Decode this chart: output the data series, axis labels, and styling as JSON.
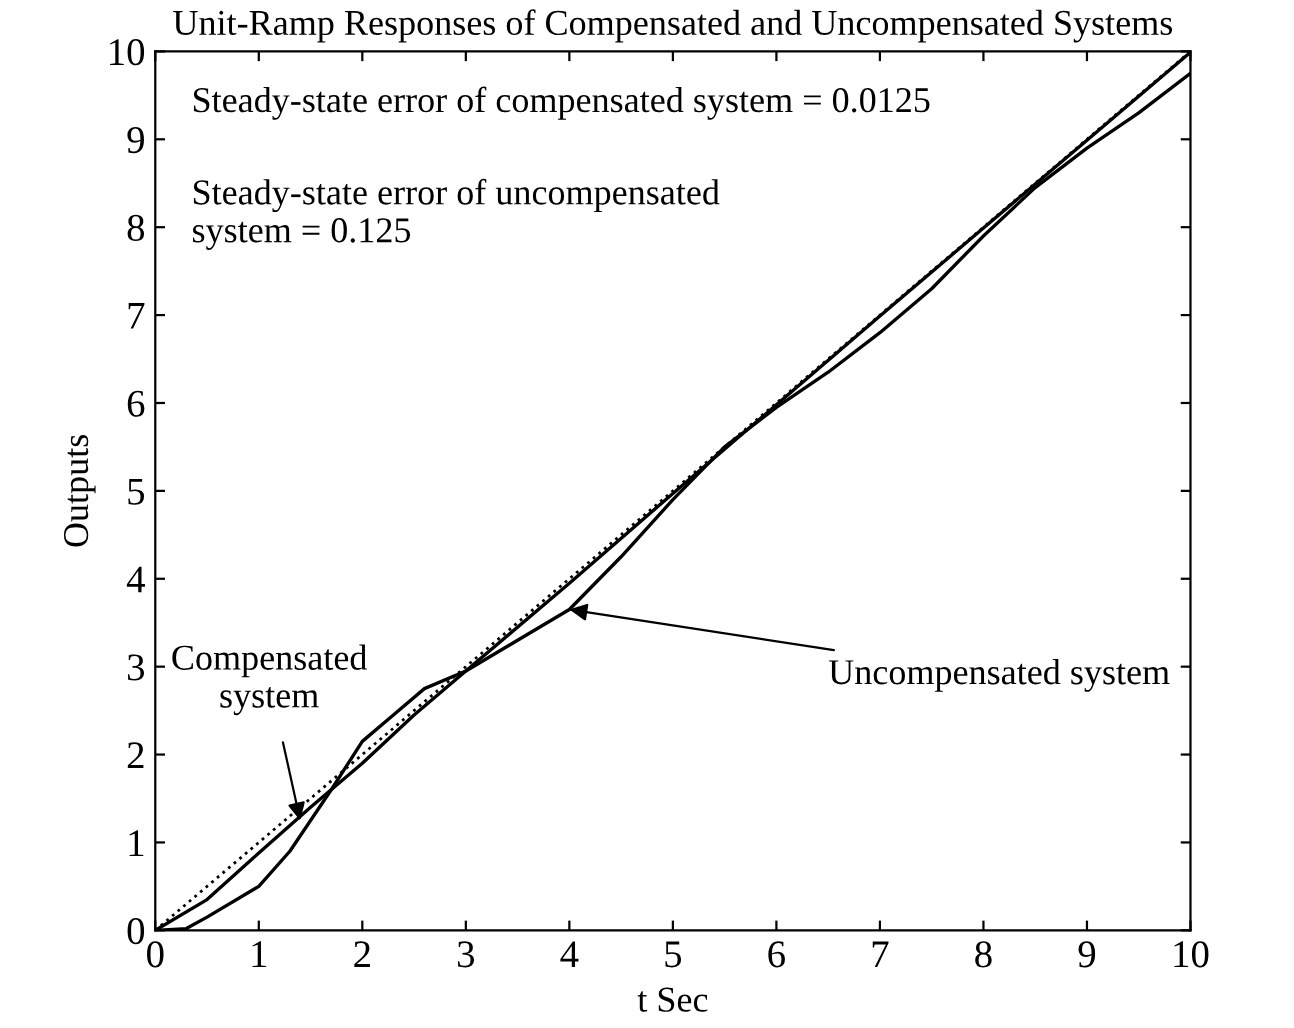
{
  "chart_data": {
    "type": "line",
    "title": "Unit-Ramp Responses of Compensated and Uncompensated Systems",
    "xlabel": "t Sec",
    "ylabel": "Outputs",
    "xlim": [
      0,
      10
    ],
    "ylim": [
      0,
      10
    ],
    "xticks": [
      0,
      1,
      2,
      3,
      4,
      5,
      6,
      7,
      8,
      9,
      10
    ],
    "yticks": [
      0,
      1,
      2,
      3,
      4,
      5,
      6,
      7,
      8,
      9,
      10
    ],
    "grid": false,
    "marker": "none",
    "series": [
      {
        "color": "#000000",
        "line_style": "dotted",
        "x": [
          0,
          10
        ],
        "values": [
          0,
          10
        ]
      },
      {
        "color": "#000000",
        "line_style": "solid",
        "x": [
          0,
          0.5,
          1,
          1.5,
          2,
          2.5,
          3,
          4,
          5,
          6,
          7,
          8,
          9,
          10
        ],
        "values": [
          0,
          0.35,
          0.88,
          1.4,
          1.9,
          2.45,
          2.95,
          3.95,
          4.97,
          5.98,
          6.99,
          7.99,
          8.99,
          9.99
        ]
      },
      {
        "color": "#000000",
        "line_style": "solid",
        "x": [
          0,
          0.3,
          0.5,
          1,
          1.3,
          1.7,
          2,
          2.3,
          2.6,
          3,
          3.5,
          4,
          4.5,
          5,
          5.5,
          6,
          6.5,
          7,
          7.5,
          8,
          8.5,
          9,
          9.5,
          10
        ],
        "values": [
          0,
          0.02,
          0.15,
          0.5,
          0.9,
          1.6,
          2.15,
          2.45,
          2.75,
          2.95,
          3.3,
          3.65,
          4.25,
          4.9,
          5.5,
          5.95,
          6.35,
          6.8,
          7.3,
          7.9,
          8.45,
          8.9,
          9.3,
          9.75
        ]
      }
    ],
    "annotations": [
      "Steady-state error of compensated system = 0.0125",
      "Steady-state error of uncompensated\nsystem = 0.125",
      {
        "text": "Compensated\nsystem",
        "x": 1.4,
        "y": 1.25
      },
      {
        "text": "Uncompensated system",
        "x": 4.0,
        "y": 3.65
      }
    ]
  }
}
